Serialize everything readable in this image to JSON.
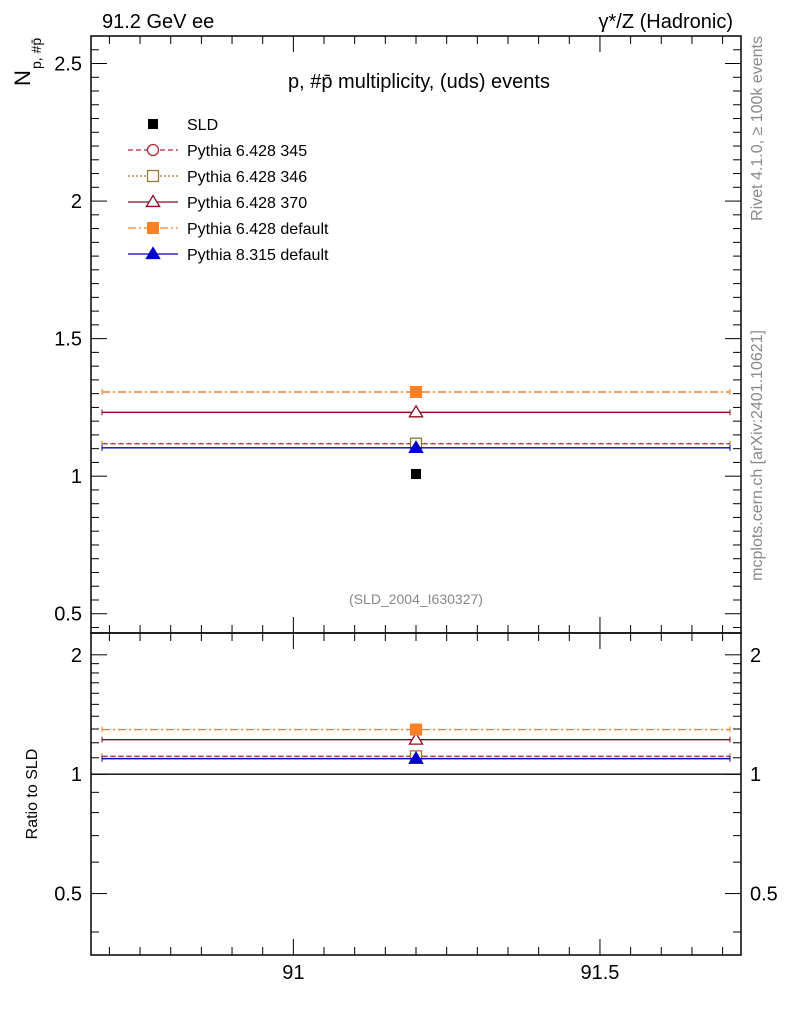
{
  "header": {
    "left": "91.2 GeV ee",
    "right": "γ*/Z (Hadronic)"
  },
  "side": {
    "rivet": "Rivet 4.1.0, ≥ 100k events",
    "mcplots": "mcplots.cern.ch [arXiv:2401.10621]"
  },
  "chart_data": {
    "type": "scatter",
    "title": "p, #p̄ multiplicity, (uds) events",
    "ylabel": "N_{p, #p̄}",
    "ylabel_main": "N",
    "ylabel_sub": "p, #p̄",
    "ratio_ylabel": "Ratio to SLD",
    "watermark": "(SLD_2004_I630327)",
    "xlim": [
      90.67,
      91.73
    ],
    "ylim": [
      0.43,
      2.6
    ],
    "ratio_ylim": [
      0.35,
      2.27
    ],
    "x_ticks": [
      {
        "v": 91,
        "label": "91"
      },
      {
        "v": 91.5,
        "label": "91.5"
      }
    ],
    "y_ticks": [
      {
        "v": 0.5,
        "label": "0.5"
      },
      {
        "v": 1,
        "label": "1"
      },
      {
        "v": 1.5,
        "label": "1.5"
      },
      {
        "v": 2,
        "label": "2"
      },
      {
        "v": 2.5,
        "label": "2.5"
      }
    ],
    "ratio_ticks": [
      {
        "v": 0.5,
        "label": "0.5"
      },
      {
        "v": 1,
        "label": "1"
      },
      {
        "v": 2,
        "label": "2"
      }
    ],
    "data": {
      "name": "SLD",
      "x": 91.2,
      "y": 1.008,
      "color": "#000000"
    },
    "series": [
      {
        "name": "Pythia 6.428 345",
        "x": 91.2,
        "y": 1.118,
        "ratio": 1.109,
        "color": "#b2263a",
        "dash": "5,3",
        "marker": "circle-open"
      },
      {
        "name": "Pythia 6.428 346",
        "x": 91.2,
        "y": 1.118,
        "ratio": 1.109,
        "color": "#997a33",
        "dash": "2,2",
        "marker": "square-open"
      },
      {
        "name": "Pythia 6.428 370",
        "x": 91.2,
        "y": 1.232,
        "ratio": 1.222,
        "color": "#8c0a1f",
        "dash": "",
        "marker": "triangle-open"
      },
      {
        "name": "Pythia 6.428 default",
        "x": 91.2,
        "y": 1.306,
        "ratio": 1.296,
        "color": "#ff7f27",
        "dash": "8,3,2,3",
        "marker": "square-filled"
      },
      {
        "name": "Pythia 8.315 default",
        "x": 91.2,
        "y": 1.103,
        "ratio": 1.094,
        "color": "#0000cc",
        "dash": "",
        "marker": "triangle-filled"
      }
    ]
  }
}
